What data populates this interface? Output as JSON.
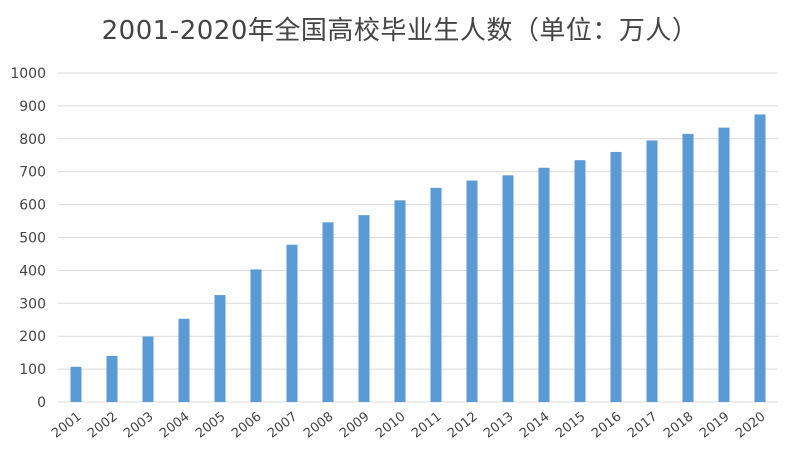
{
  "chart_data": {
    "type": "bar",
    "title": "2001-2020年全国高校毕业生人数（单位：万人）",
    "categories": [
      "2001",
      "2002",
      "2003",
      "2004",
      "2005",
      "2006",
      "2007",
      "2008",
      "2009",
      "2010",
      "2011",
      "2012",
      "2013",
      "2014",
      "2015",
      "2016",
      "2017",
      "2018",
      "2019",
      "2020"
    ],
    "values": [
      107,
      140,
      199,
      253,
      325,
      403,
      478,
      546,
      568,
      613,
      651,
      673,
      689,
      712,
      735,
      760,
      795,
      815,
      834,
      874
    ],
    "ylim": [
      0,
      1000
    ],
    "yticks": [
      0,
      100,
      200,
      300,
      400,
      500,
      600,
      700,
      800,
      900,
      1000
    ],
    "grid": true,
    "bar_color": "#5b9bd5",
    "xlabel": "",
    "ylabel": ""
  }
}
